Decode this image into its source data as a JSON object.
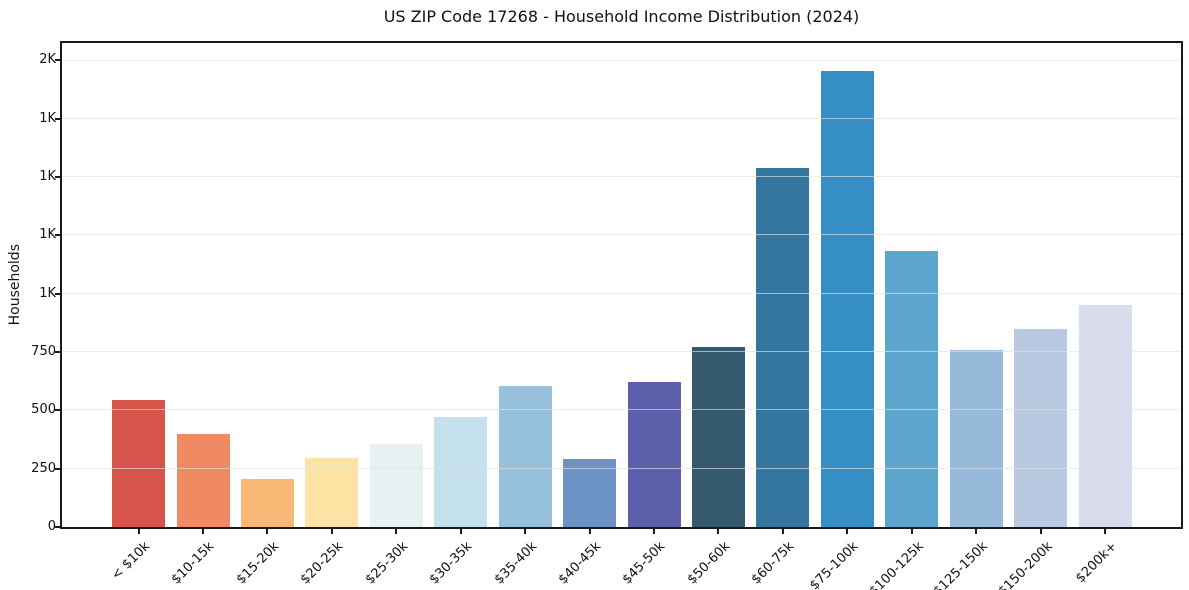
{
  "title": "US ZIP Code 17268 - Household Income Distribution (2024)",
  "chart_data": {
    "type": "bar",
    "title": "US ZIP Code 17268 - Household Income Distribution (2024)",
    "xlabel": "",
    "ylabel": "Households",
    "legend": "none",
    "grid": "horizontal",
    "ylim": [
      0,
      2075
    ],
    "categories": [
      "< $10k",
      "$10-15k",
      "$15-20k",
      "$20-25k",
      "$25-30k",
      "$30-35k",
      "$35-40k",
      "$40-45k",
      "$45-50k",
      "$50-60k",
      "$60-75k",
      "$75-100k",
      "$100-125k",
      "$125-150k",
      "$150-200k",
      "$200k+"
    ],
    "values": [
      545,
      400,
      205,
      297,
      355,
      472,
      606,
      291,
      621,
      771,
      1541,
      1956,
      1185,
      758,
      851,
      952
    ],
    "bar_colors": [
      "#d6544a",
      "#f08a62",
      "#f9b876",
      "#fce3a4",
      "#e7f1f2",
      "#c4e0ec",
      "#97c0dc",
      "#6d93c5",
      "#5e60ab",
      "#355a70",
      "#34769e",
      "#368fc4",
      "#5ca6cd",
      "#97badb",
      "#bac9e2",
      "#d9dcec"
    ],
    "yticks": [
      {
        "value": 0,
        "label": "0"
      },
      {
        "value": 250,
        "label": "250"
      },
      {
        "value": 500,
        "label": "500"
      },
      {
        "value": 750,
        "label": "750"
      },
      {
        "value": 1000,
        "label": "1K"
      },
      {
        "value": 1250,
        "label": "1K"
      },
      {
        "value": 1500,
        "label": "1K"
      },
      {
        "value": 1750,
        "label": "1K"
      },
      {
        "value": 2000,
        "label": "2K"
      }
    ]
  },
  "colors": {
    "background": "#ffffff",
    "spine": "#1a1a1a",
    "grid": "#dfe3e5",
    "text": "#111111"
  }
}
